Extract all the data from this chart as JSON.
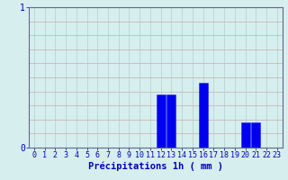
{
  "hours": [
    0,
    1,
    2,
    3,
    4,
    5,
    6,
    7,
    8,
    9,
    10,
    11,
    12,
    13,
    14,
    15,
    16,
    17,
    18,
    19,
    20,
    21,
    22,
    23
  ],
  "values": [
    0,
    0,
    0,
    0,
    0,
    0,
    0,
    0,
    0,
    0,
    0,
    0,
    0.38,
    0.38,
    0,
    0,
    0.46,
    0,
    0,
    0,
    0.18,
    0.18,
    0,
    0
  ],
  "bar_color": "#0000ee",
  "bar_edge_color": "#2222ff",
  "background_color": "#d6eeee",
  "grid_color_v": "#b8d4d4",
  "grid_color_h": "#c8b8b8",
  "axis_color": "#666688",
  "text_color": "#0000bb",
  "xlabel": "Précipitations 1h ( mm )",
  "ylim": [
    0,
    1
  ],
  "ytick_labels": [
    "0",
    "1"
  ],
  "ytick_vals": [
    0,
    1
  ],
  "xlabel_fontsize": 7.5,
  "tick_fontsize": 6
}
